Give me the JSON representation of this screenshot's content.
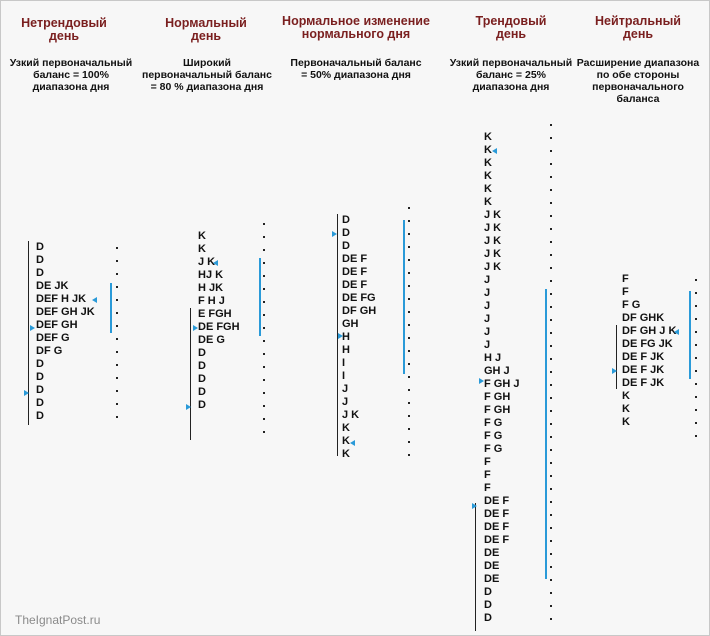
{
  "watermark": "TheIgnatPost.ru",
  "columns": [
    {
      "title": "Нетрендовый\nдень",
      "description": "Узкий первоначальный\nбаланс = 100%\nдиапазона дня",
      "rows": [
        "D",
        "D",
        "D",
        "DE JK",
        "DEF H JK",
        "DEF GH JK",
        "DEF GH",
        "DEF G",
        "DF G",
        "D",
        "D",
        "D",
        "D",
        "D"
      ]
    },
    {
      "title": "Нормальный\nдень",
      "description": "Широкий\nпервоначальный баланс\n= 80 % диапазона дня",
      "rows": [
        "K",
        "K",
        "J K",
        "HJ K",
        "H JK",
        "F H J",
        "E FGH",
        "DE FGH",
        "DE G",
        "D",
        "D",
        "D",
        "D",
        "D"
      ]
    },
    {
      "title": "Нормальное изменение\nнормального дня",
      "description": "Первоначальный баланс\n= 50% диапазона дня",
      "rows": [
        "D",
        "D",
        "D",
        "DE F",
        "DE F",
        "DE F",
        "DE FG",
        "DF GH",
        "GH",
        "H",
        "H",
        "I",
        "I",
        "J",
        "J",
        "J K",
        "K",
        "K",
        "K"
      ]
    },
    {
      "title": "Трендовый\nдень",
      "description": "Узкий первоначальный\nбаланс = 25%\nдиапазона дня",
      "rows": [
        "K",
        "K",
        "K",
        "K",
        "K",
        "K",
        "J K",
        "J K",
        "J K",
        "J K",
        "J K",
        "J",
        "J",
        "J",
        "J",
        "J",
        "J",
        "H J",
        "GH J",
        "F GH J",
        "F GH",
        "F GH",
        "F G",
        "F G",
        "F G",
        "F",
        "F",
        "F",
        "DE F",
        "DE F",
        "DE F",
        "DE F",
        "DE",
        "DE",
        "DE",
        "D",
        "D",
        "D"
      ]
    },
    {
      "title": "Нейтральный\nдень",
      "description": "Расширение диапазона\nпо обе стороны\nпервоначального\nбаланса",
      "rows": [
        "F",
        "F",
        "F G",
        "DF GHK",
        "DF GH J K",
        "DE FG JK",
        "DE F JK",
        "DE F JK",
        "DE F JK",
        "K",
        "K",
        "K"
      ]
    }
  ]
}
